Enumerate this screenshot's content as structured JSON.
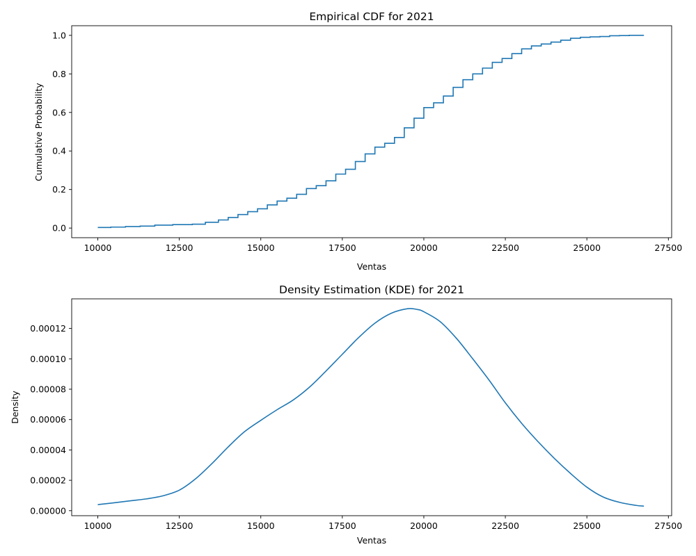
{
  "chart_data": [
    {
      "type": "line",
      "step": true,
      "title": "Empirical CDF for 2021",
      "xlabel": "Ventas",
      "ylabel": "Cumulative Probability",
      "xlim": [
        9200,
        27600
      ],
      "ylim": [
        -0.05,
        1.05
      ],
      "xticks": [
        10000,
        12500,
        15000,
        17500,
        20000,
        22500,
        25000,
        27500
      ],
      "xtick_labels": [
        "10000",
        "12500",
        "15000",
        "17500",
        "20000",
        "22500",
        "25000",
        "27500"
      ],
      "yticks": [
        0.0,
        0.2,
        0.4,
        0.6,
        0.8,
        1.0
      ],
      "ytick_labels": [
        "0.0",
        "0.2",
        "0.4",
        "0.6",
        "0.8",
        "1.0"
      ],
      "grid": false,
      "color": "#1f77b4",
      "series": [
        {
          "x": [
            10000,
            10400,
            10850,
            11300,
            11750,
            12300,
            12900,
            13300,
            13700,
            14000,
            14300,
            14600,
            14900,
            15200,
            15500,
            15800,
            16100,
            16400,
            16700,
            17000,
            17300,
            17600,
            17900,
            18200,
            18500,
            18800,
            19100,
            19400,
            19700,
            20000,
            20300,
            20600,
            20900,
            21200,
            21500,
            21800,
            22100,
            22400,
            22700,
            23000,
            23300,
            23600,
            23900,
            24200,
            24500,
            24800,
            25100,
            25400,
            25700,
            26000,
            26300,
            26750
          ],
          "y": [
            0.003,
            0.005,
            0.008,
            0.01,
            0.015,
            0.018,
            0.02,
            0.03,
            0.042,
            0.055,
            0.07,
            0.085,
            0.1,
            0.12,
            0.14,
            0.155,
            0.175,
            0.205,
            0.22,
            0.245,
            0.28,
            0.305,
            0.345,
            0.385,
            0.42,
            0.44,
            0.47,
            0.52,
            0.57,
            0.625,
            0.65,
            0.685,
            0.73,
            0.77,
            0.8,
            0.83,
            0.86,
            0.88,
            0.905,
            0.93,
            0.945,
            0.955,
            0.965,
            0.975,
            0.985,
            0.99,
            0.992,
            0.994,
            0.998,
            0.999,
            1.0,
            1.0
          ]
        }
      ]
    },
    {
      "type": "line",
      "title": "Density Estimation (KDE) for 2021",
      "xlabel": "Ventas",
      "ylabel": "Density",
      "xlim": [
        9200,
        27600
      ],
      "ylim": [
        -3.3e-06,
        0.0001395
      ],
      "xticks": [
        10000,
        12500,
        15000,
        17500,
        20000,
        22500,
        25000,
        27500
      ],
      "xtick_labels": [
        "10000",
        "12500",
        "15000",
        "17500",
        "20000",
        "22500",
        "25000",
        "27500"
      ],
      "yticks": [
        0.0,
        2e-05,
        4e-05,
        6e-05,
        8e-05,
        0.0001,
        0.00012
      ],
      "ytick_labels": [
        "0.00000",
        "0.00002",
        "0.00004",
        "0.00006",
        "0.00008",
        "0.00010",
        "0.00012"
      ],
      "grid": false,
      "color": "#1f77b4",
      "series": [
        {
          "x": [
            10000,
            10500,
            11000,
            11500,
            12000,
            12500,
            13000,
            13500,
            14000,
            14500,
            15000,
            15500,
            16000,
            16500,
            17000,
            17500,
            18000,
            18500,
            19000,
            19500,
            19800,
            20000,
            20500,
            21000,
            21500,
            22000,
            22500,
            23000,
            23500,
            24000,
            24500,
            25000,
            25500,
            26000,
            26500,
            26750
          ],
          "y": [
            4e-06,
            5.2e-06,
            6.5e-06,
            7.8e-06,
            9.8e-06,
            1.35e-05,
            2.1e-05,
            3.1e-05,
            4.2e-05,
            5.2e-05,
            5.95e-05,
            6.65e-05,
            7.3e-05,
            8.15e-05,
            9.2e-05,
            0.000103,
            0.000114,
            0.0001235,
            0.00013,
            0.000133,
            0.0001325,
            0.000131,
            0.0001245,
            0.0001135,
            0.0001,
            8.6e-05,
            7.1e-05,
            5.75e-05,
            4.55e-05,
            3.45e-05,
            2.45e-05,
            1.55e-05,
            9e-06,
            5.5e-06,
            3.5e-06,
            3e-06
          ]
        }
      ]
    }
  ]
}
